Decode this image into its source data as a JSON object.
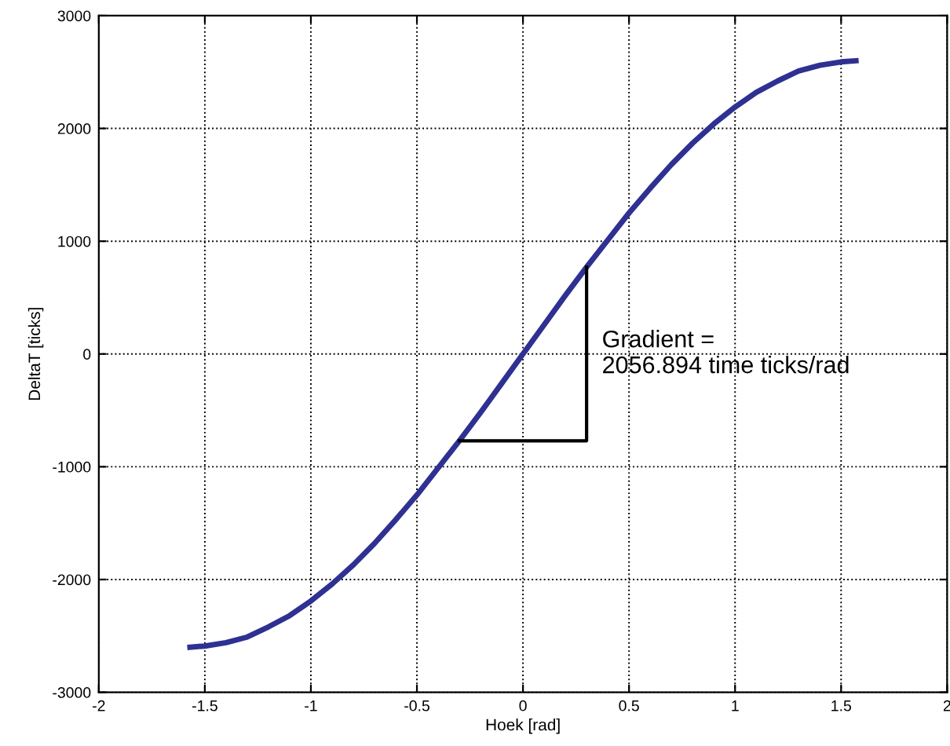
{
  "chart_data": {
    "type": "line",
    "xlabel": "Hoek [rad]",
    "ylabel": "DeltaT [ticks]",
    "xlim": [
      -2,
      2
    ],
    "xticks": [
      -2,
      -1.5,
      -1,
      -0.5,
      0,
      0.5,
      1,
      1.5,
      2
    ],
    "ylim": [
      -3000,
      3000
    ],
    "yticks": [
      -3000,
      -2000,
      -1000,
      0,
      1000,
      2000,
      3000
    ],
    "grid": true,
    "line_style": "solid",
    "marker": "none",
    "series": [
      {
        "color": "#2e3192",
        "x": [
          -1.57,
          -1.5,
          -1.4,
          -1.3,
          -1.2,
          -1.1,
          -1.0,
          -0.9,
          -0.8,
          -0.7,
          -0.6,
          -0.5,
          -0.4,
          -0.3,
          -0.2,
          -0.1,
          0,
          0.1,
          0.2,
          0.3,
          0.4,
          0.5,
          0.6,
          0.7,
          0.8,
          0.9,
          1.0,
          1.1,
          1.2,
          1.3,
          1.4,
          1.5,
          1.57
        ],
        "values": [
          -2600,
          -2590,
          -2560,
          -2510,
          -2420,
          -2320,
          -2190,
          -2040,
          -1870,
          -1680,
          -1470,
          -1250,
          -1010,
          -770,
          -520,
          -260,
          0,
          260,
          520,
          770,
          1010,
          1250,
          1470,
          1680,
          1870,
          2040,
          2190,
          2320,
          2420,
          2510,
          2560,
          2590,
          2600
        ]
      },
      {
        "color": "#000000",
        "x": [
          -0.3,
          0.3,
          0.3
        ],
        "values": [
          -770,
          -770,
          770
        ]
      }
    ],
    "annotations": [
      "Gradient =\n2056.894 time ticks/rad"
    ]
  }
}
